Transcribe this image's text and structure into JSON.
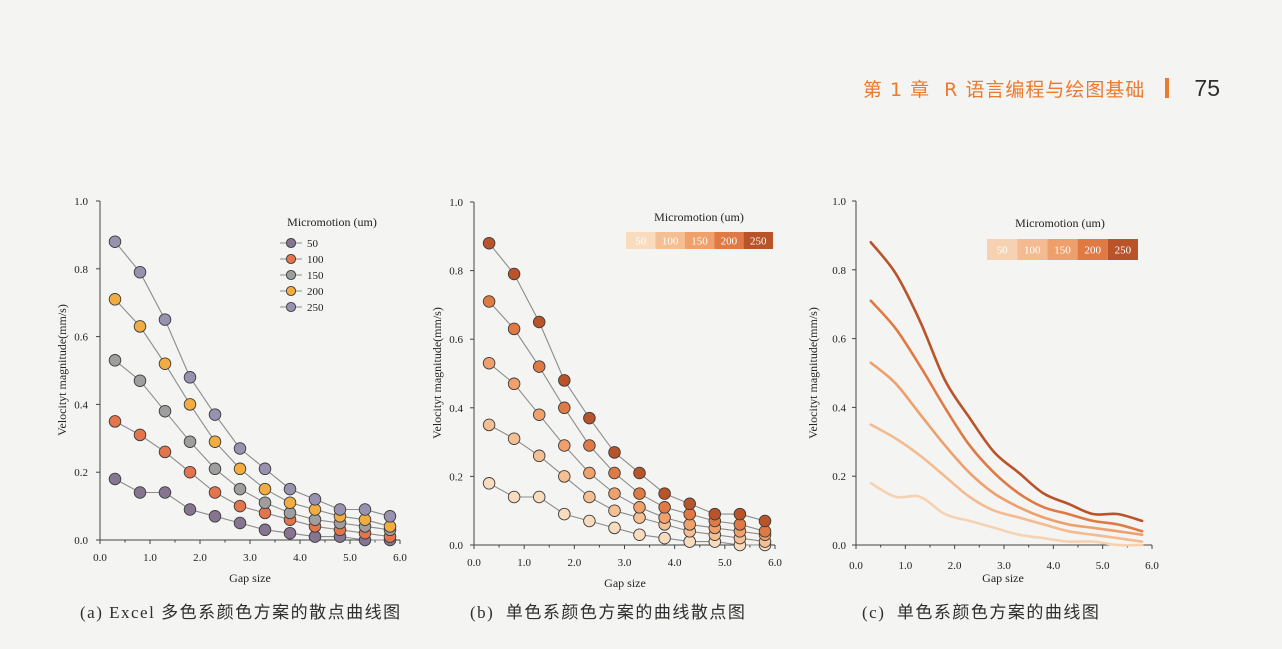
{
  "header": {
    "chapter_title": "第 1 章  R 语言编程与绘图基础",
    "page_number": "75"
  },
  "colors": {
    "page_background": "#f4f4f2",
    "header_accent": "#ec7a2e",
    "axis": "#444444",
    "marker_outline": "#3a3a3a",
    "tick_text": "#222222"
  },
  "chart_data": [
    {
      "type": "line",
      "markers": true,
      "smooth": false,
      "caption": "(a) Excel 多色系颜色方案的散点曲线图",
      "xlabel": "Gap size",
      "ylabel": "Velocityt magnitude(mm/s)",
      "xlim": [
        0,
        6
      ],
      "ylim": [
        0,
        1
      ],
      "xticks": [
        0,
        1,
        2,
        3,
        4,
        5,
        6
      ],
      "xtick_labels": [
        "0.0",
        "1.0",
        "2.0",
        "3.0",
        "4.0",
        "5.0",
        "6.0"
      ],
      "yticks": [
        0,
        0.2,
        0.4,
        0.6,
        0.8,
        1.0
      ],
      "ytick_labels": [
        "0.0",
        "0.2",
        "0.4",
        "0.6",
        "0.8",
        "1.0"
      ],
      "grid": false,
      "legend": {
        "title": "Micromotion (um)",
        "placement": "top-right"
      },
      "line_color": "#8c8c8c",
      "x": [
        0.3,
        0.8,
        1.3,
        1.8,
        2.3,
        2.8,
        3.3,
        3.8,
        4.3,
        4.8,
        5.3,
        5.8
      ],
      "series": [
        {
          "name": "50",
          "color": "#857590",
          "values": [
            0.18,
            0.14,
            0.14,
            0.09,
            0.07,
            0.05,
            0.03,
            0.02,
            0.01,
            0.01,
            0.0,
            0.0
          ]
        },
        {
          "name": "100",
          "color": "#e4744c",
          "values": [
            0.35,
            0.31,
            0.26,
            0.2,
            0.14,
            0.1,
            0.08,
            0.06,
            0.04,
            0.03,
            0.02,
            0.01
          ]
        },
        {
          "name": "150",
          "color": "#9e9e9e",
          "values": [
            0.53,
            0.47,
            0.38,
            0.29,
            0.21,
            0.15,
            0.11,
            0.08,
            0.06,
            0.05,
            0.04,
            0.03
          ]
        },
        {
          "name": "200",
          "color": "#f1ad42",
          "values": [
            0.71,
            0.63,
            0.52,
            0.4,
            0.29,
            0.21,
            0.15,
            0.11,
            0.09,
            0.07,
            0.06,
            0.04
          ]
        },
        {
          "name": "250",
          "color": "#9892b0",
          "values": [
            0.88,
            0.79,
            0.65,
            0.48,
            0.37,
            0.27,
            0.21,
            0.15,
            0.12,
            0.09,
            0.09,
            0.07
          ]
        }
      ]
    },
    {
      "type": "line",
      "markers": true,
      "smooth": false,
      "caption": "(b)  单色系颜色方案的曲线散点图",
      "xlabel": "Gap size",
      "ylabel": "Velocityt magnitude(mm/s)",
      "xlim": [
        0,
        6
      ],
      "ylim": [
        0,
        1
      ],
      "xticks": [
        0,
        1,
        2,
        3,
        4,
        5,
        6
      ],
      "xtick_labels": [
        "0.0",
        "1.0",
        "2.0",
        "3.0",
        "4.0",
        "5.0",
        "6.0"
      ],
      "yticks": [
        0,
        0.2,
        0.4,
        0.6,
        0.8,
        1.0
      ],
      "ytick_labels": [
        "0.0",
        "0.2",
        "0.4",
        "0.6",
        "0.8",
        "1.0"
      ],
      "grid": false,
      "legend": {
        "title": "Micromotion (um)",
        "placement": "top-right"
      },
      "line_color": "#8c8c8c",
      "x": [
        0.3,
        0.8,
        1.3,
        1.8,
        2.3,
        2.8,
        3.3,
        3.8,
        4.3,
        4.8,
        5.3,
        5.8
      ],
      "series": [
        {
          "name": "50",
          "color": "#f9dcbe",
          "values": [
            0.18,
            0.14,
            0.14,
            0.09,
            0.07,
            0.05,
            0.03,
            0.02,
            0.01,
            0.01,
            0.0,
            0.0
          ]
        },
        {
          "name": "100",
          "color": "#f5bf94",
          "values": [
            0.35,
            0.31,
            0.26,
            0.2,
            0.14,
            0.1,
            0.08,
            0.06,
            0.04,
            0.03,
            0.02,
            0.01
          ]
        },
        {
          "name": "150",
          "color": "#efa06b",
          "values": [
            0.53,
            0.47,
            0.38,
            0.29,
            0.21,
            0.15,
            0.11,
            0.08,
            0.06,
            0.05,
            0.04,
            0.03
          ]
        },
        {
          "name": "200",
          "color": "#df7a45",
          "values": [
            0.71,
            0.63,
            0.52,
            0.4,
            0.29,
            0.21,
            0.15,
            0.11,
            0.09,
            0.07,
            0.06,
            0.04
          ]
        },
        {
          "name": "250",
          "color": "#b9532a",
          "values": [
            0.88,
            0.79,
            0.65,
            0.48,
            0.37,
            0.27,
            0.21,
            0.15,
            0.12,
            0.09,
            0.09,
            0.07
          ]
        }
      ]
    },
    {
      "type": "line",
      "markers": false,
      "smooth": true,
      "caption": "(c)  单色系颜色方案的曲线图",
      "xlabel": "Gap size",
      "ylabel": "Velocityt magnitude(mm/s)",
      "xlim": [
        0,
        6
      ],
      "ylim": [
        0,
        1
      ],
      "xticks": [
        0,
        1,
        2,
        3,
        4,
        5,
        6
      ],
      "xtick_labels": [
        "0.0",
        "1.0",
        "2.0",
        "3.0",
        "4.0",
        "5.0",
        "6.0"
      ],
      "yticks": [
        0,
        0.2,
        0.4,
        0.6,
        0.8,
        1.0
      ],
      "ytick_labels": [
        "0.0",
        "0.2",
        "0.4",
        "0.6",
        "0.8",
        "1.0"
      ],
      "grid": false,
      "legend": {
        "title": "Micromotion (um)",
        "placement": "top-right"
      },
      "x": [
        0.3,
        0.8,
        1.3,
        1.8,
        2.3,
        2.8,
        3.3,
        3.8,
        4.3,
        4.8,
        5.3,
        5.8
      ],
      "series": [
        {
          "name": "50",
          "color": "#f6d2b2",
          "values": [
            0.18,
            0.14,
            0.14,
            0.09,
            0.07,
            0.05,
            0.03,
            0.02,
            0.01,
            0.01,
            0.0,
            0.0
          ]
        },
        {
          "name": "100",
          "color": "#f3bb8f",
          "values": [
            0.35,
            0.31,
            0.26,
            0.2,
            0.14,
            0.1,
            0.08,
            0.06,
            0.04,
            0.03,
            0.02,
            0.01
          ]
        },
        {
          "name": "150",
          "color": "#eea06c",
          "values": [
            0.53,
            0.47,
            0.38,
            0.29,
            0.21,
            0.15,
            0.11,
            0.08,
            0.06,
            0.05,
            0.04,
            0.03
          ]
        },
        {
          "name": "200",
          "color": "#df7a45",
          "values": [
            0.71,
            0.63,
            0.52,
            0.4,
            0.29,
            0.21,
            0.15,
            0.11,
            0.09,
            0.07,
            0.06,
            0.04
          ]
        },
        {
          "name": "250",
          "color": "#b9532a",
          "values": [
            0.88,
            0.79,
            0.65,
            0.48,
            0.37,
            0.27,
            0.21,
            0.15,
            0.12,
            0.09,
            0.09,
            0.07
          ]
        }
      ]
    }
  ]
}
